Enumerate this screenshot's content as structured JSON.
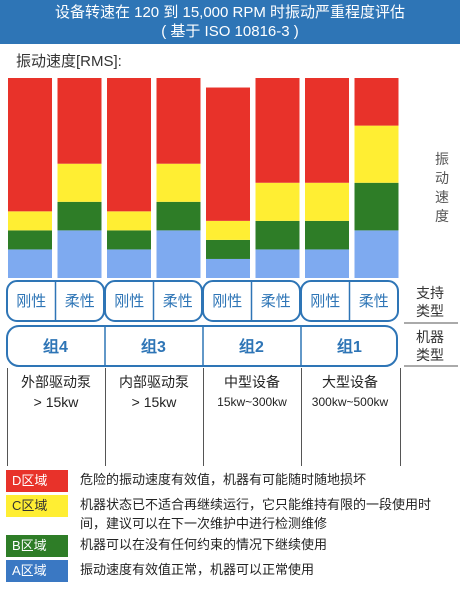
{
  "title": {
    "line1": "设备转速在 120 到 15,000 RPM 时振动严重程度评估",
    "line2": "( 基于 ISO 10816-3 )"
  },
  "y_label": "振动速度[RMS]:",
  "vertical_label": [
    "振",
    "动",
    "速",
    "度"
  ],
  "support_label": [
    "支持",
    "类型"
  ],
  "machine_label": [
    "机器",
    "类型"
  ],
  "colors": {
    "D": "#e8322a",
    "C": "#ffee33",
    "B": "#2e7d27",
    "A": "#7eaaf0",
    "header": "#2e75b6",
    "outline": "#2e75b6"
  },
  "chart_data": {
    "type": "bar",
    "stacked": true,
    "categories": [
      "组4 刚性",
      "组4 柔性",
      "组3 刚性",
      "组3 柔性",
      "组2 刚性",
      "组2 柔性",
      "组1 刚性",
      "组1 柔性"
    ],
    "series": [
      {
        "name": "A区域",
        "values": [
          3,
          5,
          3,
          5,
          2,
          3,
          3,
          5
        ]
      },
      {
        "name": "B区域",
        "values": [
          2,
          3,
          2,
          3,
          2,
          3,
          3,
          5
        ]
      },
      {
        "name": "C区域",
        "values": [
          2,
          4,
          2,
          4,
          2,
          4,
          4,
          6
        ]
      },
      {
        "name": "D区域",
        "values": [
          14,
          9,
          14,
          9,
          14,
          11,
          11,
          5
        ]
      }
    ],
    "support_types": [
      "刚性",
      "柔性",
      "刚性",
      "柔性",
      "刚性",
      "柔性",
      "刚性",
      "柔性"
    ],
    "groups": [
      {
        "name": "组4",
        "desc1": "外部驱动泵",
        "desc2": "> 15kw"
      },
      {
        "name": "组3",
        "desc1": "内部驱动泵",
        "desc2": "> 15kw"
      },
      {
        "name": "组2",
        "desc1": "中型设备",
        "desc2": "15kw~300kw"
      },
      {
        "name": "组1",
        "desc1": "大型设备",
        "desc2": "300kw~500kw"
      }
    ]
  },
  "legend": [
    {
      "key": "D区域",
      "zone": "D",
      "text": "危险的振动速度有效值，机器有可能随时随地损坏"
    },
    {
      "key": "C区域",
      "zone": "C",
      "text": "机器状态已不适合再继续运行，它只能维持有限的一段使用时间，建议可以在下一次维护中进行检测维修"
    },
    {
      "key": "B区域",
      "zone": "B",
      "text": "机器可以在没有任何约束的情况下继续使用"
    },
    {
      "key": "A区域",
      "zone": "A",
      "text": "振动速度有效值正常，机器可以正常使用"
    }
  ]
}
